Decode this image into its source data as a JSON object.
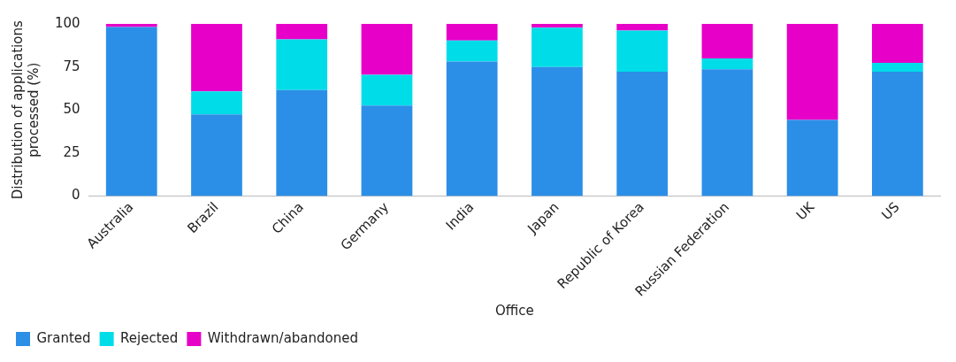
{
  "chart_data": {
    "type": "bar",
    "stacked": true,
    "xlabel": "Office",
    "ylabel": "Distribution of applications\nprocessed (%)",
    "categories": [
      "Australia",
      "Brazil",
      "China",
      "Germany",
      "India",
      "Japan",
      "Republic of Korea",
      "Russian Federation",
      "UK",
      "US"
    ],
    "series": [
      {
        "name": "Granted",
        "color": "#2b8fe8",
        "values": [
          98.2,
          47.4,
          61.6,
          52.6,
          78.1,
          75.0,
          72.3,
          73.6,
          44.3,
          72.3
        ]
      },
      {
        "name": "Rejected",
        "color": "#00dde8",
        "values": [
          0,
          13.4,
          29.4,
          17.8,
          12.2,
          22.8,
          23.9,
          6.4,
          0,
          5.1
        ]
      },
      {
        "name": "Withdrawn/abandoned",
        "color": "#e600c8",
        "values": [
          1.8,
          39.2,
          9.0,
          29.6,
          9.7,
          2.2,
          3.8,
          20.0,
          55.7,
          22.6
        ]
      }
    ],
    "ylim": [
      0,
      100
    ],
    "yticks": [
      0,
      25,
      50,
      75,
      100
    ],
    "grid": false,
    "legend": "bottom left"
  }
}
